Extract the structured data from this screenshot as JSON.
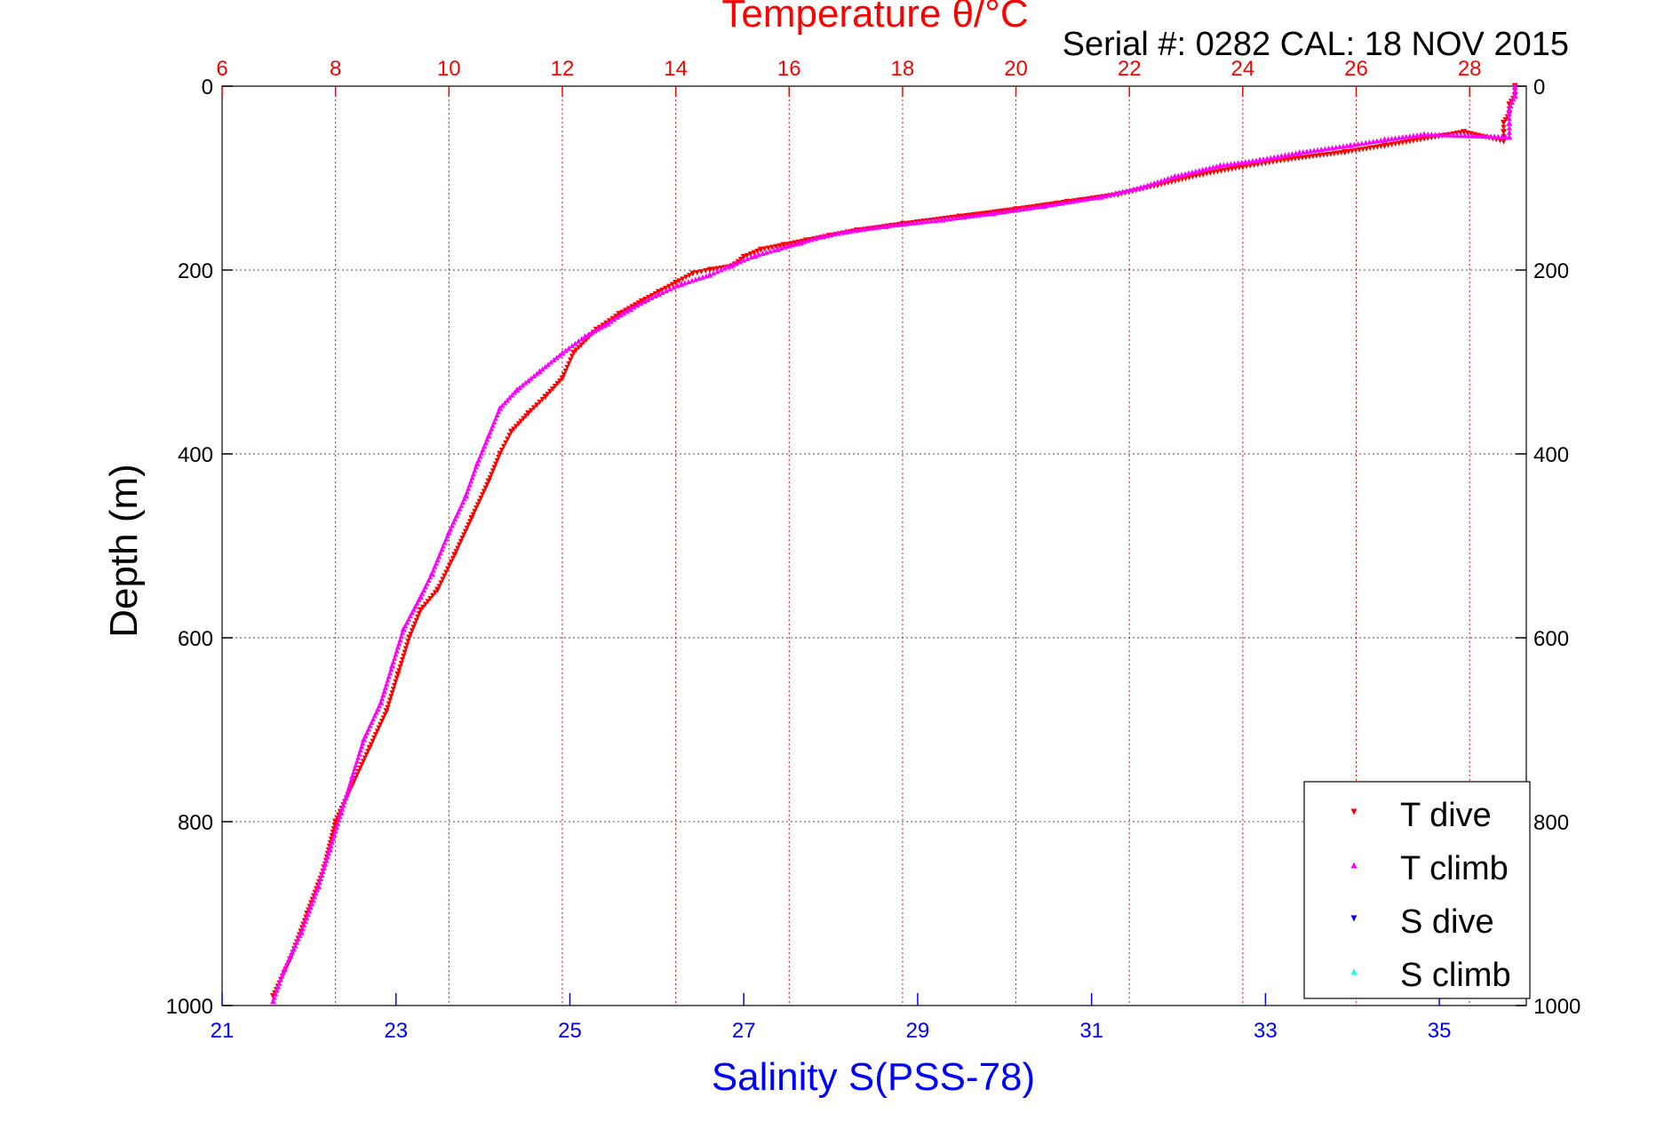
{
  "title": "Temperature θ/°C",
  "subtitle": "Serial #: 0282  CAL: 18 NOV 2015",
  "colors": {
    "temperature_axis": "#ff0000",
    "salinity_axis": "#0000ff",
    "t_dive": "#ff0000",
    "t_climb": "#ff00ff",
    "s_dive": "#0000ff",
    "s_climb": "#00ffff",
    "grid": "#000000"
  },
  "chart_data": {
    "type": "scatter",
    "title": "Temperature θ/°C",
    "xlabel_top": "Temperature θ/°C",
    "xlabel_bottom": "Salinity S(PSS-78)",
    "ylabel": "Depth (m)",
    "temperature_range": [
      6,
      29
    ],
    "salinity_range": [
      21,
      36
    ],
    "depth_range": [
      0,
      1000
    ],
    "y_reversed": true,
    "temperature_ticks": [
      "6",
      "8",
      "10",
      "12",
      "14",
      "16",
      "18",
      "20",
      "22",
      "24",
      "26",
      "28"
    ],
    "salinity_ticks": [
      "21",
      "23",
      "25",
      "27",
      "29",
      "31",
      "33",
      "35"
    ],
    "depth_ticks_left": [
      "0",
      "200",
      "400",
      "600",
      "800",
      "1000"
    ],
    "depth_ticks_right": [
      "0",
      "200",
      "400",
      "600",
      "800",
      "1000"
    ],
    "grid": true,
    "legend_position": "bottom-right",
    "series": [
      {
        "name": "T dive",
        "marker": "triangle-down",
        "axis": "temperature",
        "points": [
          [
            28.8,
            0
          ],
          [
            28.8,
            10
          ],
          [
            28.7,
            20
          ],
          [
            28.7,
            30
          ],
          [
            28.6,
            40
          ],
          [
            28.6,
            50
          ],
          [
            28.6,
            60
          ],
          [
            27.9,
            50
          ],
          [
            26.5,
            65
          ],
          [
            25.8,
            72
          ],
          [
            24.8,
            80
          ],
          [
            24.0,
            88
          ],
          [
            23.3,
            96
          ],
          [
            22.5,
            108
          ],
          [
            21.8,
            118
          ],
          [
            20.9,
            126
          ],
          [
            20.0,
            134
          ],
          [
            19.0,
            142
          ],
          [
            18.0,
            150
          ],
          [
            17.2,
            157
          ],
          [
            16.7,
            163
          ],
          [
            16.3,
            168
          ],
          [
            15.9,
            173
          ],
          [
            15.5,
            178
          ],
          [
            15.2,
            186
          ],
          [
            15.0,
            196
          ],
          [
            14.6,
            200
          ],
          [
            14.3,
            204
          ],
          [
            14.0,
            214
          ],
          [
            13.7,
            224
          ],
          [
            13.4,
            234
          ],
          [
            13.0,
            248
          ],
          [
            12.6,
            265
          ],
          [
            12.2,
            290
          ],
          [
            12.0,
            318
          ],
          [
            11.7,
            338
          ],
          [
            11.4,
            356
          ],
          [
            11.1,
            376
          ],
          [
            10.9,
            400
          ],
          [
            10.7,
            430
          ],
          [
            10.4,
            470
          ],
          [
            10.1,
            510
          ],
          [
            9.8,
            548
          ],
          [
            9.5,
            570
          ],
          [
            9.3,
            600
          ],
          [
            9.1,
            640
          ],
          [
            8.9,
            680
          ],
          [
            8.6,
            720
          ],
          [
            8.3,
            760
          ],
          [
            8.0,
            800
          ],
          [
            7.8,
            850
          ],
          [
            7.5,
            900
          ],
          [
            7.2,
            950
          ],
          [
            6.9,
            990
          ]
        ]
      },
      {
        "name": "T climb",
        "marker": "triangle-up",
        "axis": "temperature",
        "points": [
          [
            28.8,
            0
          ],
          [
            28.8,
            10
          ],
          [
            28.7,
            25
          ],
          [
            28.7,
            40
          ],
          [
            28.7,
            55
          ],
          [
            27.2,
            52
          ],
          [
            26.5,
            58
          ],
          [
            25.9,
            64
          ],
          [
            25.0,
            72
          ],
          [
            24.3,
            80
          ],
          [
            23.6,
            86
          ],
          [
            22.8,
            98
          ],
          [
            22.2,
            110
          ],
          [
            21.5,
            120
          ],
          [
            20.5,
            130
          ],
          [
            19.6,
            138
          ],
          [
            18.7,
            145
          ],
          [
            17.7,
            152
          ],
          [
            17.0,
            158
          ],
          [
            16.6,
            163
          ],
          [
            16.2,
            170
          ],
          [
            15.8,
            177
          ],
          [
            15.4,
            184
          ],
          [
            15.0,
            194
          ],
          [
            14.6,
            205
          ],
          [
            14.1,
            215
          ],
          [
            13.7,
            226
          ],
          [
            13.2,
            242
          ],
          [
            12.8,
            258
          ],
          [
            12.4,
            272
          ],
          [
            12.0,
            290
          ],
          [
            11.6,
            310
          ],
          [
            11.2,
            330
          ],
          [
            10.9,
            350
          ],
          [
            10.7,
            380
          ],
          [
            10.5,
            410
          ],
          [
            10.3,
            445
          ],
          [
            10.0,
            485
          ],
          [
            9.7,
            530
          ],
          [
            9.5,
            555
          ],
          [
            9.2,
            590
          ],
          [
            9.0,
            630
          ],
          [
            8.8,
            670
          ],
          [
            8.5,
            710
          ],
          [
            8.3,
            750
          ],
          [
            8.1,
            790
          ],
          [
            7.9,
            830
          ],
          [
            7.7,
            870
          ],
          [
            7.4,
            920
          ],
          [
            7.1,
            960
          ],
          [
            6.9,
            995
          ]
        ]
      },
      {
        "name": "S dive",
        "marker": "triangle-down",
        "axis": "salinity",
        "points": []
      },
      {
        "name": "S climb",
        "marker": "triangle-up",
        "axis": "salinity",
        "points": []
      }
    ]
  }
}
